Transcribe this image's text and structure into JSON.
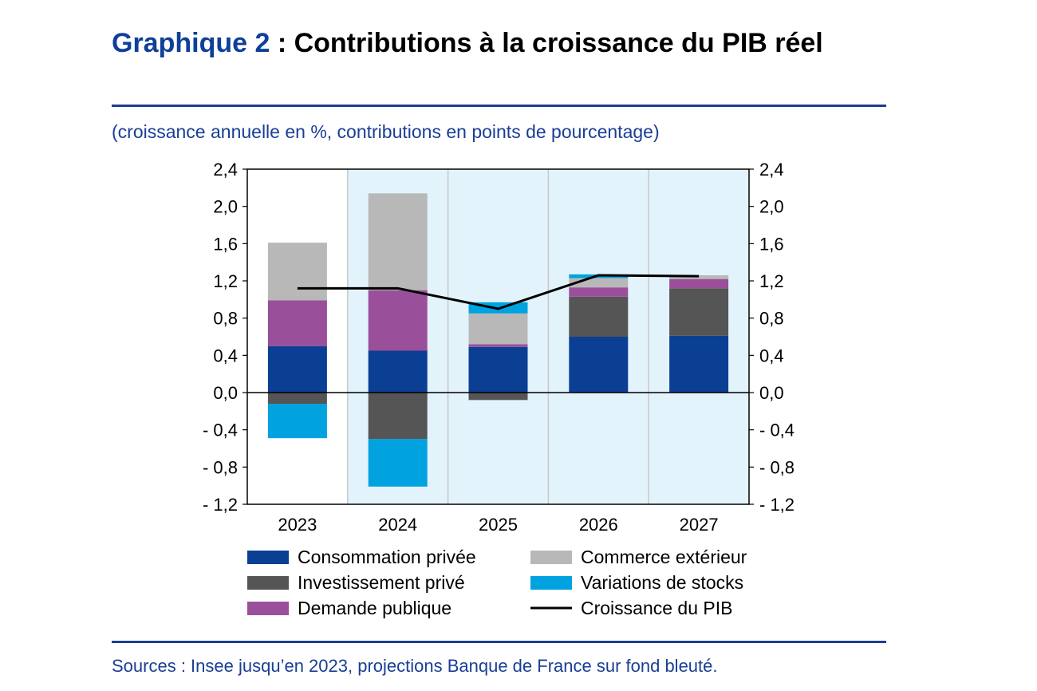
{
  "title": {
    "prefix": "Graphique 2",
    "rest": " : Contributions à la croissance du PIB réel"
  },
  "subtitle": "(croissance annuelle en %, contributions en points de pourcentage)",
  "source": "Sources : Insee jusqu’en 2023, projections Banque de France sur fond bleuté.",
  "colors": {
    "accent": "#1a3e96",
    "projection_bg": "#e3f3fb"
  },
  "chart_data": {
    "type": "bar",
    "stacked": true,
    "categories": [
      "2023",
      "2024",
      "2025",
      "2026",
      "2027"
    ],
    "projection_start_index": 1,
    "ylim": [
      -1.2,
      2.4
    ],
    "yticks": [
      2.4,
      2.0,
      1.6,
      1.2,
      0.8,
      0.4,
      0.0,
      -0.4,
      -0.8,
      -1.2
    ],
    "ytick_labels": [
      "2,4",
      "2,0",
      "1,6",
      "1,2",
      "0,8",
      "0,4",
      "0,0",
      "- 0,4",
      "- 0,8",
      "- 1,2"
    ],
    "series": [
      {
        "name": "Consommation privée",
        "color": "#0b3f94",
        "values": [
          0.5,
          0.45,
          0.49,
          0.6,
          0.61
        ]
      },
      {
        "name": "Investissement privé",
        "color": "#555555",
        "values": [
          -0.12,
          -0.5,
          -0.08,
          0.43,
          0.51
        ]
      },
      {
        "name": "Demande publique",
        "color": "#9a4f9b",
        "values": [
          0.49,
          0.65,
          0.03,
          0.1,
          0.1
        ]
      },
      {
        "name": "Commerce extérieur",
        "color": "#b8b8b8",
        "values": [
          0.62,
          1.04,
          0.33,
          0.1,
          0.04
        ]
      },
      {
        "name": "Variations de stocks",
        "color": "#00a3e0",
        "values": [
          -0.37,
          -0.51,
          0.12,
          0.04,
          0.0
        ]
      }
    ],
    "line": {
      "name": "Croissance du PIB",
      "color": "#000000",
      "values": [
        1.12,
        1.12,
        0.9,
        1.26,
        1.25
      ]
    },
    "legend": [
      {
        "name": "Consommation privée",
        "kind": "box",
        "color": "#0b3f94"
      },
      {
        "name": "Commerce extérieur",
        "kind": "box",
        "color": "#b8b8b8"
      },
      {
        "name": "Investissement privé",
        "kind": "box",
        "color": "#555555"
      },
      {
        "name": "Variations de stocks",
        "kind": "box",
        "color": "#00a3e0"
      },
      {
        "name": "Demande publique",
        "kind": "box",
        "color": "#9a4f9b"
      },
      {
        "name": "Croissance du PIB",
        "kind": "line",
        "color": "#000000"
      }
    ]
  }
}
